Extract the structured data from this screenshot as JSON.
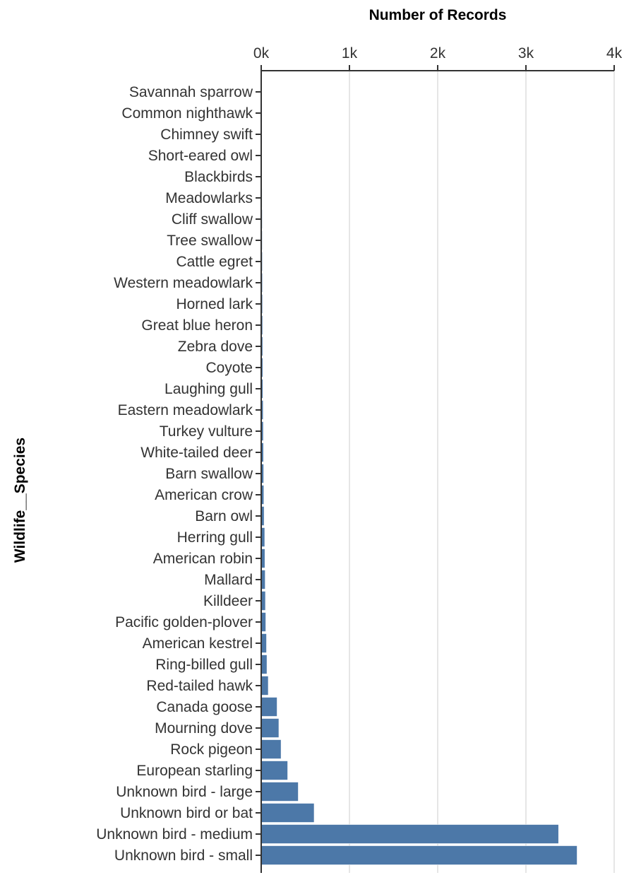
{
  "chart_data": {
    "type": "bar",
    "orientation": "horizontal",
    "xlabel": "Number of Records",
    "ylabel": "Wildlife__Species",
    "xlim": [
      0,
      4000
    ],
    "x_ticks": [
      {
        "value": 0,
        "label": "0k"
      },
      {
        "value": 1000,
        "label": "1k"
      },
      {
        "value": 2000,
        "label": "2k"
      },
      {
        "value": 3000,
        "label": "3k"
      },
      {
        "value": 4000,
        "label": "4k"
      }
    ],
    "x_axis_position": "top",
    "grid": true,
    "bar_color": "#4c78a8",
    "categories": [
      "Savannah sparrow",
      "Common nighthawk",
      "Chimney swift",
      "Short-eared owl",
      "Blackbirds",
      "Meadowlarks",
      "Cliff swallow",
      "Tree swallow",
      "Cattle egret",
      "Western meadowlark",
      "Horned lark",
      "Great blue heron",
      "Zebra dove",
      "Coyote",
      "Laughing gull",
      "Eastern meadowlark",
      "Turkey vulture",
      "White-tailed deer",
      "Barn swallow",
      "American crow",
      "Barn owl",
      "Herring gull",
      "American robin",
      "Mallard",
      "Killdeer",
      "Pacific golden-plover",
      "American kestrel",
      "Ring-billed gull",
      "Red-tailed hawk",
      "Canada goose",
      "Mourning dove",
      "Rock pigeon",
      "European starling",
      "Unknown bird - large",
      "Unknown bird or bat",
      "Unknown bird - medium",
      "Unknown bird - small"
    ],
    "values": [
      8,
      9,
      9,
      10,
      10,
      11,
      12,
      12,
      13,
      14,
      15,
      16,
      17,
      18,
      19,
      22,
      24,
      26,
      28,
      30,
      33,
      40,
      42,
      45,
      48,
      52,
      60,
      65,
      80,
      180,
      200,
      225,
      300,
      420,
      600,
      3370,
      3580
    ]
  }
}
